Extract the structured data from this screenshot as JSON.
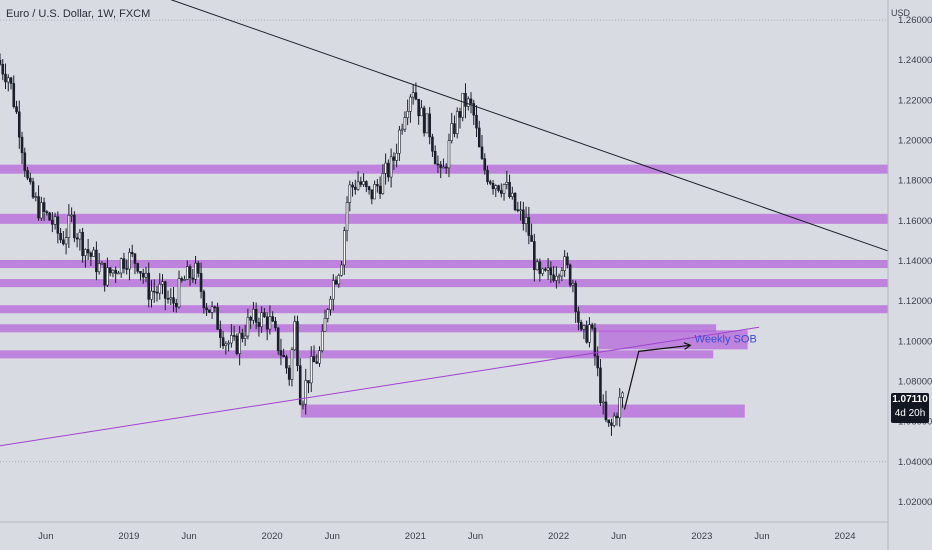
{
  "header": {
    "symbol_title": "Euro / U.S. Dollar, 1W, FXCM",
    "currency": "USD"
  },
  "price_tag": {
    "price": "1.07110",
    "countdown": "4d 20h"
  },
  "colors": {
    "background": "#d8dbe1",
    "zone": "#b565d9",
    "candle": "#1a1f2b",
    "trendline": "#1a1f2b",
    "support_line": "#a042d0",
    "sob_text": "#3b4cd6"
  },
  "chart_data": {
    "type": "candlestick",
    "title": "Euro / U.S. Dollar, 1W, FXCM",
    "ylabel": "USD",
    "ylim": [
      1.01,
      1.27
    ],
    "y_ticks": [
      "1.26000",
      "1.24000",
      "1.22000",
      "1.20000",
      "1.18000",
      "1.16000",
      "1.14000",
      "1.12000",
      "1.10000",
      "1.08000",
      "1.06000",
      "1.04000",
      "1.02000"
    ],
    "x_ticks": [
      {
        "label": "Jun",
        "t": 2018.42
      },
      {
        "label": "2019",
        "t": 2019.0
      },
      {
        "label": "Jun",
        "t": 2019.42
      },
      {
        "label": "2020",
        "t": 2020.0
      },
      {
        "label": "Jun",
        "t": 2020.42
      },
      {
        "label": "2021",
        "t": 2021.0
      },
      {
        "label": "Jun",
        "t": 2021.42
      },
      {
        "label": "2022",
        "t": 2022.0
      },
      {
        "label": "Jun",
        "t": 2022.42
      },
      {
        "label": "2023",
        "t": 2023.0
      },
      {
        "label": "Jun",
        "t": 2023.42
      },
      {
        "label": "2024",
        "t": 2024.0
      }
    ],
    "xlim": [
      2018.1,
      2024.3
    ],
    "grid": true,
    "price_path": [
      [
        2018.1,
        1.24
      ],
      [
        2018.18,
        1.232
      ],
      [
        2018.26,
        1.205
      ],
      [
        2018.32,
        1.175
      ],
      [
        2018.4,
        1.165
      ],
      [
        2018.48,
        1.16
      ],
      [
        2018.55,
        1.15
      ],
      [
        2018.62,
        1.16
      ],
      [
        2018.7,
        1.148
      ],
      [
        2018.78,
        1.14
      ],
      [
        2018.86,
        1.132
      ],
      [
        2018.94,
        1.138
      ],
      [
        2019.0,
        1.142
      ],
      [
        2019.08,
        1.14
      ],
      [
        2019.16,
        1.125
      ],
      [
        2019.24,
        1.125
      ],
      [
        2019.32,
        1.118
      ],
      [
        2019.4,
        1.13
      ],
      [
        2019.48,
        1.135
      ],
      [
        2019.55,
        1.12
      ],
      [
        2019.62,
        1.112
      ],
      [
        2019.7,
        1.1
      ],
      [
        2019.76,
        1.097
      ],
      [
        2019.84,
        1.108
      ],
      [
        2019.92,
        1.112
      ],
      [
        2020.0,
        1.11
      ],
      [
        2020.08,
        1.095
      ],
      [
        2020.14,
        1.083
      ],
      [
        2020.18,
        1.11
      ],
      [
        2020.22,
        1.07
      ],
      [
        2020.28,
        1.085
      ],
      [
        2020.36,
        1.095
      ],
      [
        2020.42,
        1.125
      ],
      [
        2020.5,
        1.14
      ],
      [
        2020.55,
        1.175
      ],
      [
        2020.62,
        1.18
      ],
      [
        2020.7,
        1.172
      ],
      [
        2020.78,
        1.18
      ],
      [
        2020.86,
        1.188
      ],
      [
        2020.94,
        1.215
      ],
      [
        2021.0,
        1.228
      ],
      [
        2021.06,
        1.212
      ],
      [
        2021.12,
        1.205
      ],
      [
        2021.2,
        1.18
      ],
      [
        2021.28,
        1.205
      ],
      [
        2021.36,
        1.22
      ],
      [
        2021.42,
        1.215
      ],
      [
        2021.48,
        1.188
      ],
      [
        2021.56,
        1.18
      ],
      [
        2021.64,
        1.178
      ],
      [
        2021.72,
        1.165
      ],
      [
        2021.8,
        1.158
      ],
      [
        2021.88,
        1.13
      ],
      [
        2021.96,
        1.133
      ],
      [
        2022.04,
        1.14
      ],
      [
        2022.12,
        1.13
      ],
      [
        2022.18,
        1.1
      ],
      [
        2022.24,
        1.108
      ],
      [
        2022.3,
        1.08
      ],
      [
        2022.34,
        1.06
      ],
      [
        2022.38,
        1.055
      ],
      [
        2022.42,
        1.065
      ],
      [
        2022.46,
        1.072
      ]
    ],
    "zones": [
      {
        "y_top": 1.188,
        "y_bottom": 1.1835,
        "x_start": 2018.1,
        "x_end": 2024.3
      },
      {
        "y_top": 1.1635,
        "y_bottom": 1.1585,
        "x_start": 2018.1,
        "x_end": 2024.3
      },
      {
        "y_top": 1.1405,
        "y_bottom": 1.1365,
        "x_start": 2018.1,
        "x_end": 2024.3
      },
      {
        "y_top": 1.131,
        "y_bottom": 1.127,
        "x_start": 2018.1,
        "x_end": 2024.3
      },
      {
        "y_top": 1.118,
        "y_bottom": 1.114,
        "x_start": 2018.1,
        "x_end": 2024.3
      },
      {
        "y_top": 1.1085,
        "y_bottom": 1.1045,
        "x_start": 2018.1,
        "x_end": 2023.1
      },
      {
        "y_top": 1.0955,
        "y_bottom": 1.0915,
        "x_start": 2018.1,
        "x_end": 2023.08
      },
      {
        "y_top": 1.1055,
        "y_bottom": 1.096,
        "x_start": 2022.28,
        "x_end": 2023.32
      },
      {
        "y_top": 1.0685,
        "y_bottom": 1.062,
        "x_start": 2020.2,
        "x_end": 2023.3
      }
    ],
    "trendline": {
      "x1": 2018.9,
      "y1": 1.28,
      "x2": 2024.3,
      "y2": 1.145
    },
    "support_line": {
      "x1": 2018.1,
      "y1": 1.048,
      "x2": 2023.4,
      "y2": 1.107
    },
    "projection_arrow": [
      [
        2022.46,
        1.066
      ],
      [
        2022.56,
        1.095
      ],
      [
        2022.92,
        1.098
      ]
    ],
    "annotations": [
      {
        "text": "Weekly SOB",
        "x": 2022.95,
        "y": 1.1015
      }
    ]
  }
}
